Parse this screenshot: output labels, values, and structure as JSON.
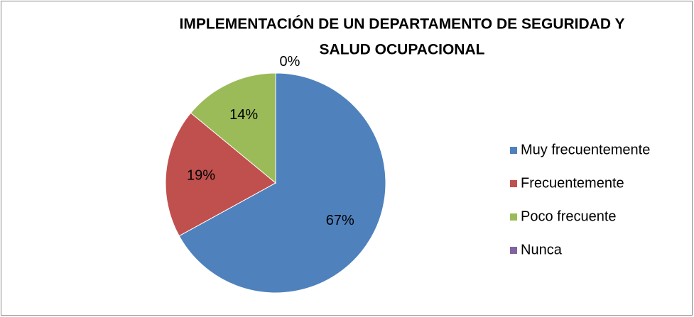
{
  "chart_data": {
    "type": "pie",
    "title": [
      "IMPLEMENTACIÓN DE UN DEPARTAMENTO DE SEGURIDAD Y",
      "SALUD OCUPACIONAL"
    ],
    "categories": [
      "Muy frecuentemente",
      "Frecuentemente",
      "Poco frecuente",
      "Nunca"
    ],
    "values": [
      67,
      19,
      14,
      0
    ],
    "value_labels": [
      "67%",
      "19%",
      "14%",
      "0%"
    ],
    "colors": [
      "#4f81bd",
      "#c0504d",
      "#9bbb59",
      "#8064a2"
    ],
    "legend": "right"
  }
}
